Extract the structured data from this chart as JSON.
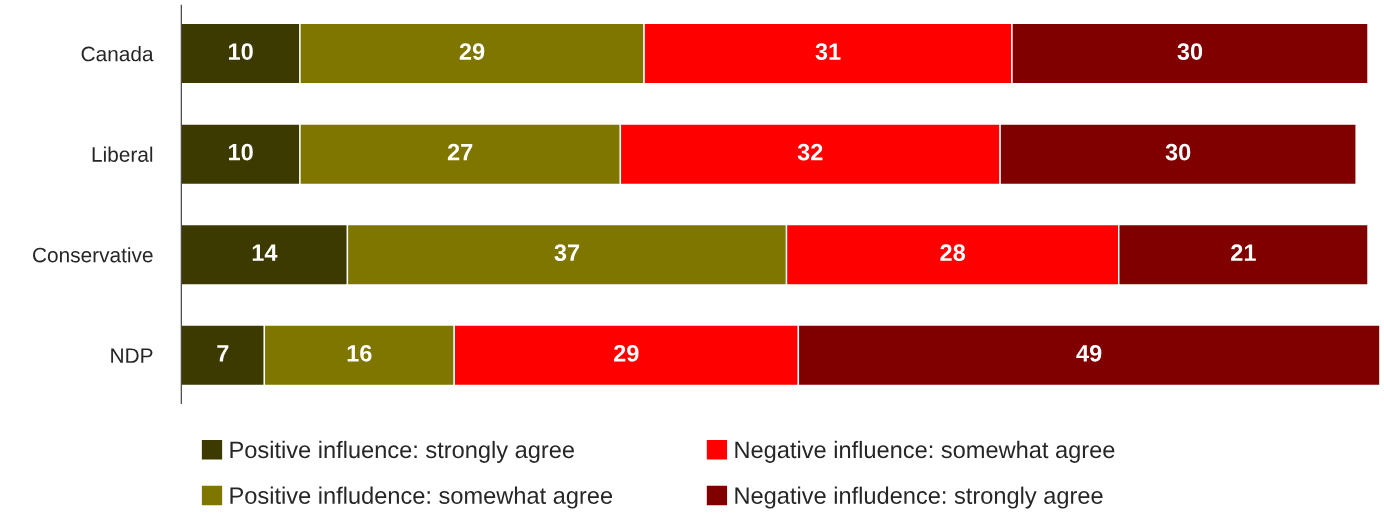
{
  "chart_data": {
    "type": "bar",
    "orientation": "horizontal",
    "stacked": true,
    "data_labels": true,
    "legend": "bottom",
    "grid": false,
    "tick_labels": "y",
    "categories": [
      "Canada",
      "Liberal",
      "Conservative",
      "NDP"
    ],
    "series": [
      {
        "name": "Positive influence: strongly agree",
        "color": "#3d3a00",
        "values": [
          10,
          10,
          14,
          7
        ]
      },
      {
        "name": "Positive infludence: somewhat agree",
        "color": "#7f7600",
        "values": [
          29,
          27,
          37,
          16
        ]
      },
      {
        "name": "Negative influence: somewhat agree",
        "color": "#ff0000",
        "values": [
          31,
          32,
          28,
          29
        ]
      },
      {
        "name": "Negative infludence: strongly agree",
        "color": "#800000",
        "values": [
          30,
          30,
          21,
          49
        ]
      }
    ]
  }
}
